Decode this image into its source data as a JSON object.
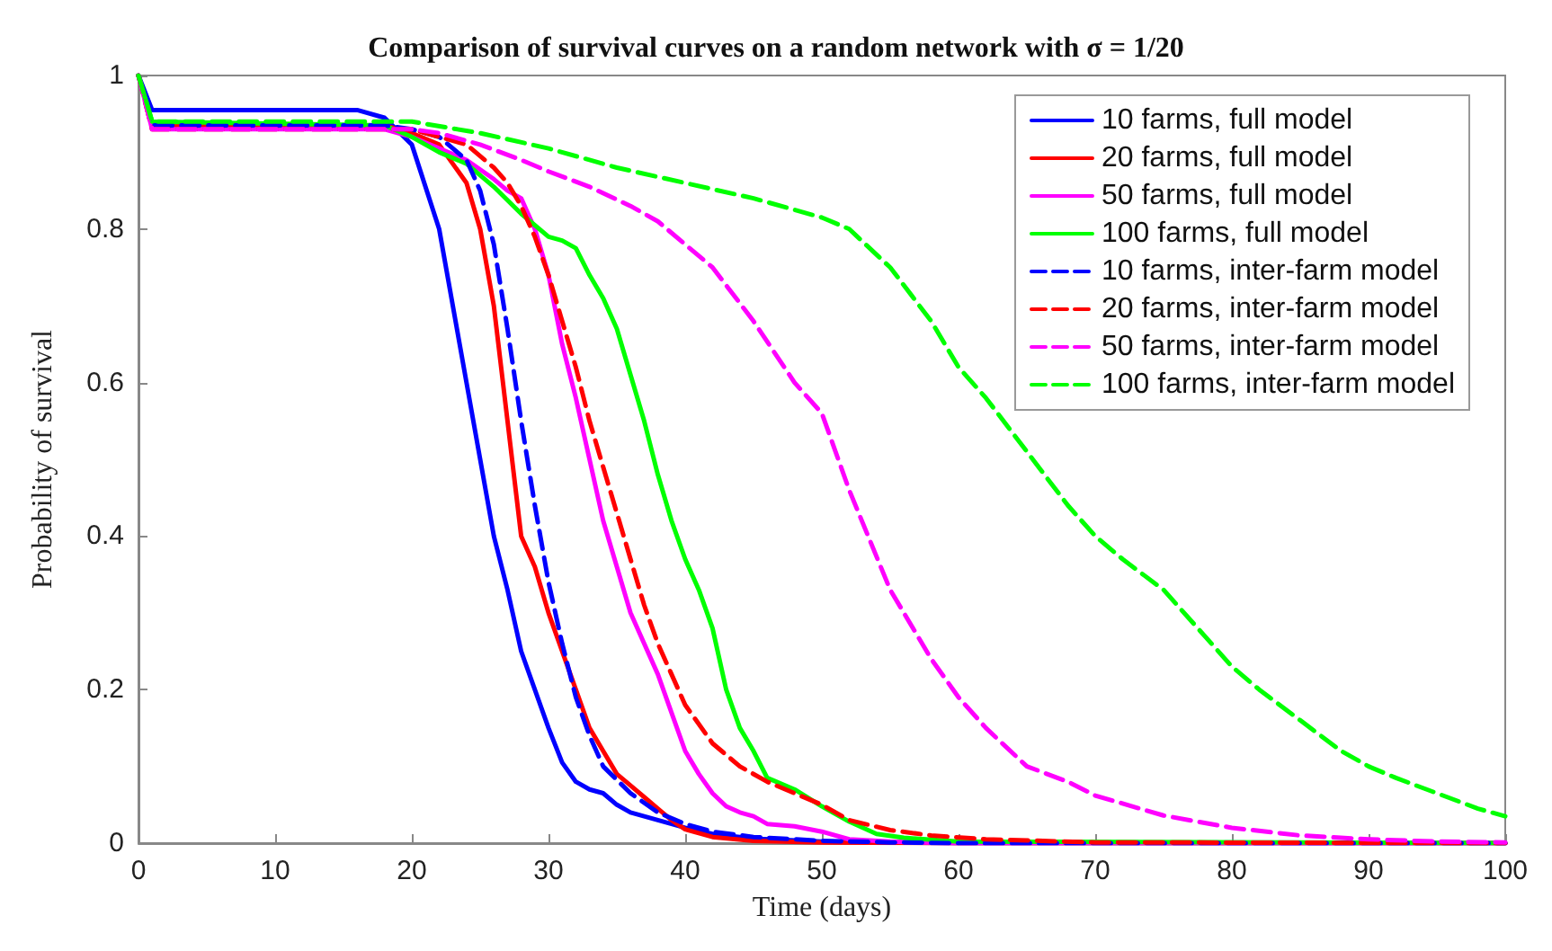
{
  "chart_data": {
    "type": "line",
    "title": "Comparison of survival curves on a random network with σ = 1/20",
    "xlabel": "Time (days)",
    "ylabel": "Probability of survival",
    "xlim": [
      0,
      100
    ],
    "xticks": [
      0,
      10,
      20,
      30,
      40,
      50,
      60,
      70,
      80,
      90,
      100
    ],
    "ylim": [
      0,
      1
    ],
    "yticks": [
      0,
      0.2,
      0.4,
      0.6,
      0.8,
      1
    ],
    "grid": false,
    "legend": "top right",
    "marker": "none",
    "series": [
      {
        "name": "10 farms, full model",
        "color": "#0000ff",
        "line_style": "solid",
        "x": [
          0,
          1,
          16,
          18,
          20,
          22,
          24,
          26,
          27,
          28,
          30,
          31,
          32,
          33,
          34,
          35,
          36,
          38,
          40,
          42,
          45,
          50,
          60,
          100
        ],
        "values": [
          1,
          0.955,
          0.955,
          0.945,
          0.91,
          0.8,
          0.6,
          0.4,
          0.33,
          0.25,
          0.15,
          0.105,
          0.08,
          0.07,
          0.065,
          0.05,
          0.04,
          0.03,
          0.02,
          0.012,
          0.006,
          0.002,
          0,
          0
        ]
      },
      {
        "name": "20 farms, full model",
        "color": "#ff0000",
        "line_style": "solid",
        "x": [
          0,
          1,
          18,
          20,
          22,
          24,
          25,
          26,
          27,
          28,
          29,
          30,
          32,
          33,
          34,
          35,
          36,
          37,
          38,
          39,
          40,
          42,
          45,
          50,
          60,
          100
        ],
        "values": [
          1,
          0.935,
          0.935,
          0.925,
          0.91,
          0.86,
          0.8,
          0.7,
          0.55,
          0.4,
          0.36,
          0.3,
          0.2,
          0.15,
          0.12,
          0.09,
          0.075,
          0.06,
          0.045,
          0.03,
          0.018,
          0.008,
          0.003,
          0.001,
          0,
          0
        ]
      },
      {
        "name": "50 farms, full model",
        "color": "#ff00ff",
        "line_style": "solid",
        "x": [
          0,
          1,
          18,
          20,
          22,
          24,
          26,
          27,
          28,
          29,
          30,
          31,
          32,
          33,
          34,
          35,
          36,
          37,
          38,
          39,
          40,
          41,
          42,
          43,
          44,
          45,
          46,
          48,
          50,
          52,
          55,
          60,
          100
        ],
        "values": [
          1,
          0.93,
          0.93,
          0.92,
          0.905,
          0.89,
          0.865,
          0.85,
          0.84,
          0.8,
          0.74,
          0.65,
          0.58,
          0.5,
          0.42,
          0.36,
          0.3,
          0.26,
          0.22,
          0.17,
          0.12,
          0.09,
          0.065,
          0.048,
          0.04,
          0.035,
          0.025,
          0.022,
          0.015,
          0.005,
          0.002,
          0,
          0
        ]
      },
      {
        "name": "100 farms, full model",
        "color": "#00ff00",
        "line_style": "solid",
        "x": [
          0,
          1,
          18,
          20,
          22,
          24,
          26,
          28,
          30,
          31,
          32,
          33,
          34,
          35,
          36,
          37,
          38,
          39,
          40,
          41,
          42,
          43,
          44,
          45,
          46,
          48,
          50,
          52,
          54,
          56,
          60,
          100
        ],
        "values": [
          1,
          0.94,
          0.935,
          0.92,
          0.9,
          0.885,
          0.855,
          0.82,
          0.79,
          0.785,
          0.775,
          0.74,
          0.71,
          0.67,
          0.61,
          0.55,
          0.48,
          0.42,
          0.37,
          0.33,
          0.28,
          0.2,
          0.15,
          0.12,
          0.085,
          0.07,
          0.048,
          0.028,
          0.012,
          0.007,
          0.002,
          0
        ]
      },
      {
        "name": "10 farms, inter-farm model",
        "color": "#0000ff",
        "line_style": "dashed",
        "x": [
          0,
          1,
          18,
          20,
          22,
          24,
          25,
          26,
          27,
          28,
          29,
          30,
          31,
          32,
          33,
          34,
          36,
          38,
          40,
          42,
          45,
          50,
          55,
          60,
          100
        ],
        "values": [
          1,
          0.935,
          0.935,
          0.93,
          0.92,
          0.89,
          0.85,
          0.78,
          0.67,
          0.55,
          0.44,
          0.34,
          0.26,
          0.19,
          0.14,
          0.1,
          0.065,
          0.04,
          0.025,
          0.015,
          0.008,
          0.003,
          0.001,
          0,
          0
        ]
      },
      {
        "name": "20 farms, inter-farm model",
        "color": "#ff0000",
        "line_style": "dashed",
        "x": [
          0,
          1,
          18,
          20,
          22,
          24,
          26,
          27,
          28,
          29,
          30,
          31,
          32,
          33,
          34,
          35,
          36,
          37,
          38,
          39,
          40,
          42,
          44,
          46,
          48,
          50,
          52,
          55,
          58,
          62,
          70,
          100
        ],
        "values": [
          1,
          0.93,
          0.93,
          0.93,
          0.92,
          0.91,
          0.88,
          0.86,
          0.83,
          0.79,
          0.74,
          0.68,
          0.62,
          0.55,
          0.49,
          0.43,
          0.37,
          0.31,
          0.26,
          0.22,
          0.18,
          0.13,
          0.1,
          0.08,
          0.065,
          0.05,
          0.03,
          0.017,
          0.01,
          0.005,
          0.001,
          0
        ]
      },
      {
        "name": "50 farms, inter-farm model",
        "color": "#ff00ff",
        "line_style": "dashed",
        "x": [
          0,
          1,
          20,
          22,
          25,
          28,
          30,
          33,
          36,
          38,
          40,
          42,
          45,
          48,
          50,
          52,
          55,
          58,
          60,
          62,
          65,
          68,
          70,
          75,
          80,
          85,
          90,
          95,
          100
        ],
        "values": [
          1,
          0.93,
          0.93,
          0.925,
          0.91,
          0.89,
          0.875,
          0.855,
          0.83,
          0.81,
          0.78,
          0.75,
          0.68,
          0.6,
          0.56,
          0.46,
          0.33,
          0.24,
          0.19,
          0.15,
          0.1,
          0.08,
          0.062,
          0.036,
          0.02,
          0.01,
          0.005,
          0.002,
          0.001
        ]
      },
      {
        "name": "100 farms, inter-farm model",
        "color": "#00ff00",
        "line_style": "dashed",
        "x": [
          0,
          1,
          20,
          25,
          30,
          35,
          40,
          45,
          48,
          50,
          52,
          55,
          58,
          60,
          62,
          65,
          68,
          70,
          72,
          75,
          78,
          80,
          82,
          85,
          88,
          90,
          92,
          95,
          98,
          100
        ],
        "values": [
          1,
          0.94,
          0.94,
          0.925,
          0.905,
          0.88,
          0.86,
          0.84,
          0.825,
          0.815,
          0.8,
          0.75,
          0.68,
          0.62,
          0.58,
          0.51,
          0.44,
          0.4,
          0.37,
          0.33,
          0.27,
          0.23,
          0.2,
          0.16,
          0.12,
          0.1,
          0.085,
          0.065,
          0.045,
          0.035
        ]
      }
    ]
  }
}
